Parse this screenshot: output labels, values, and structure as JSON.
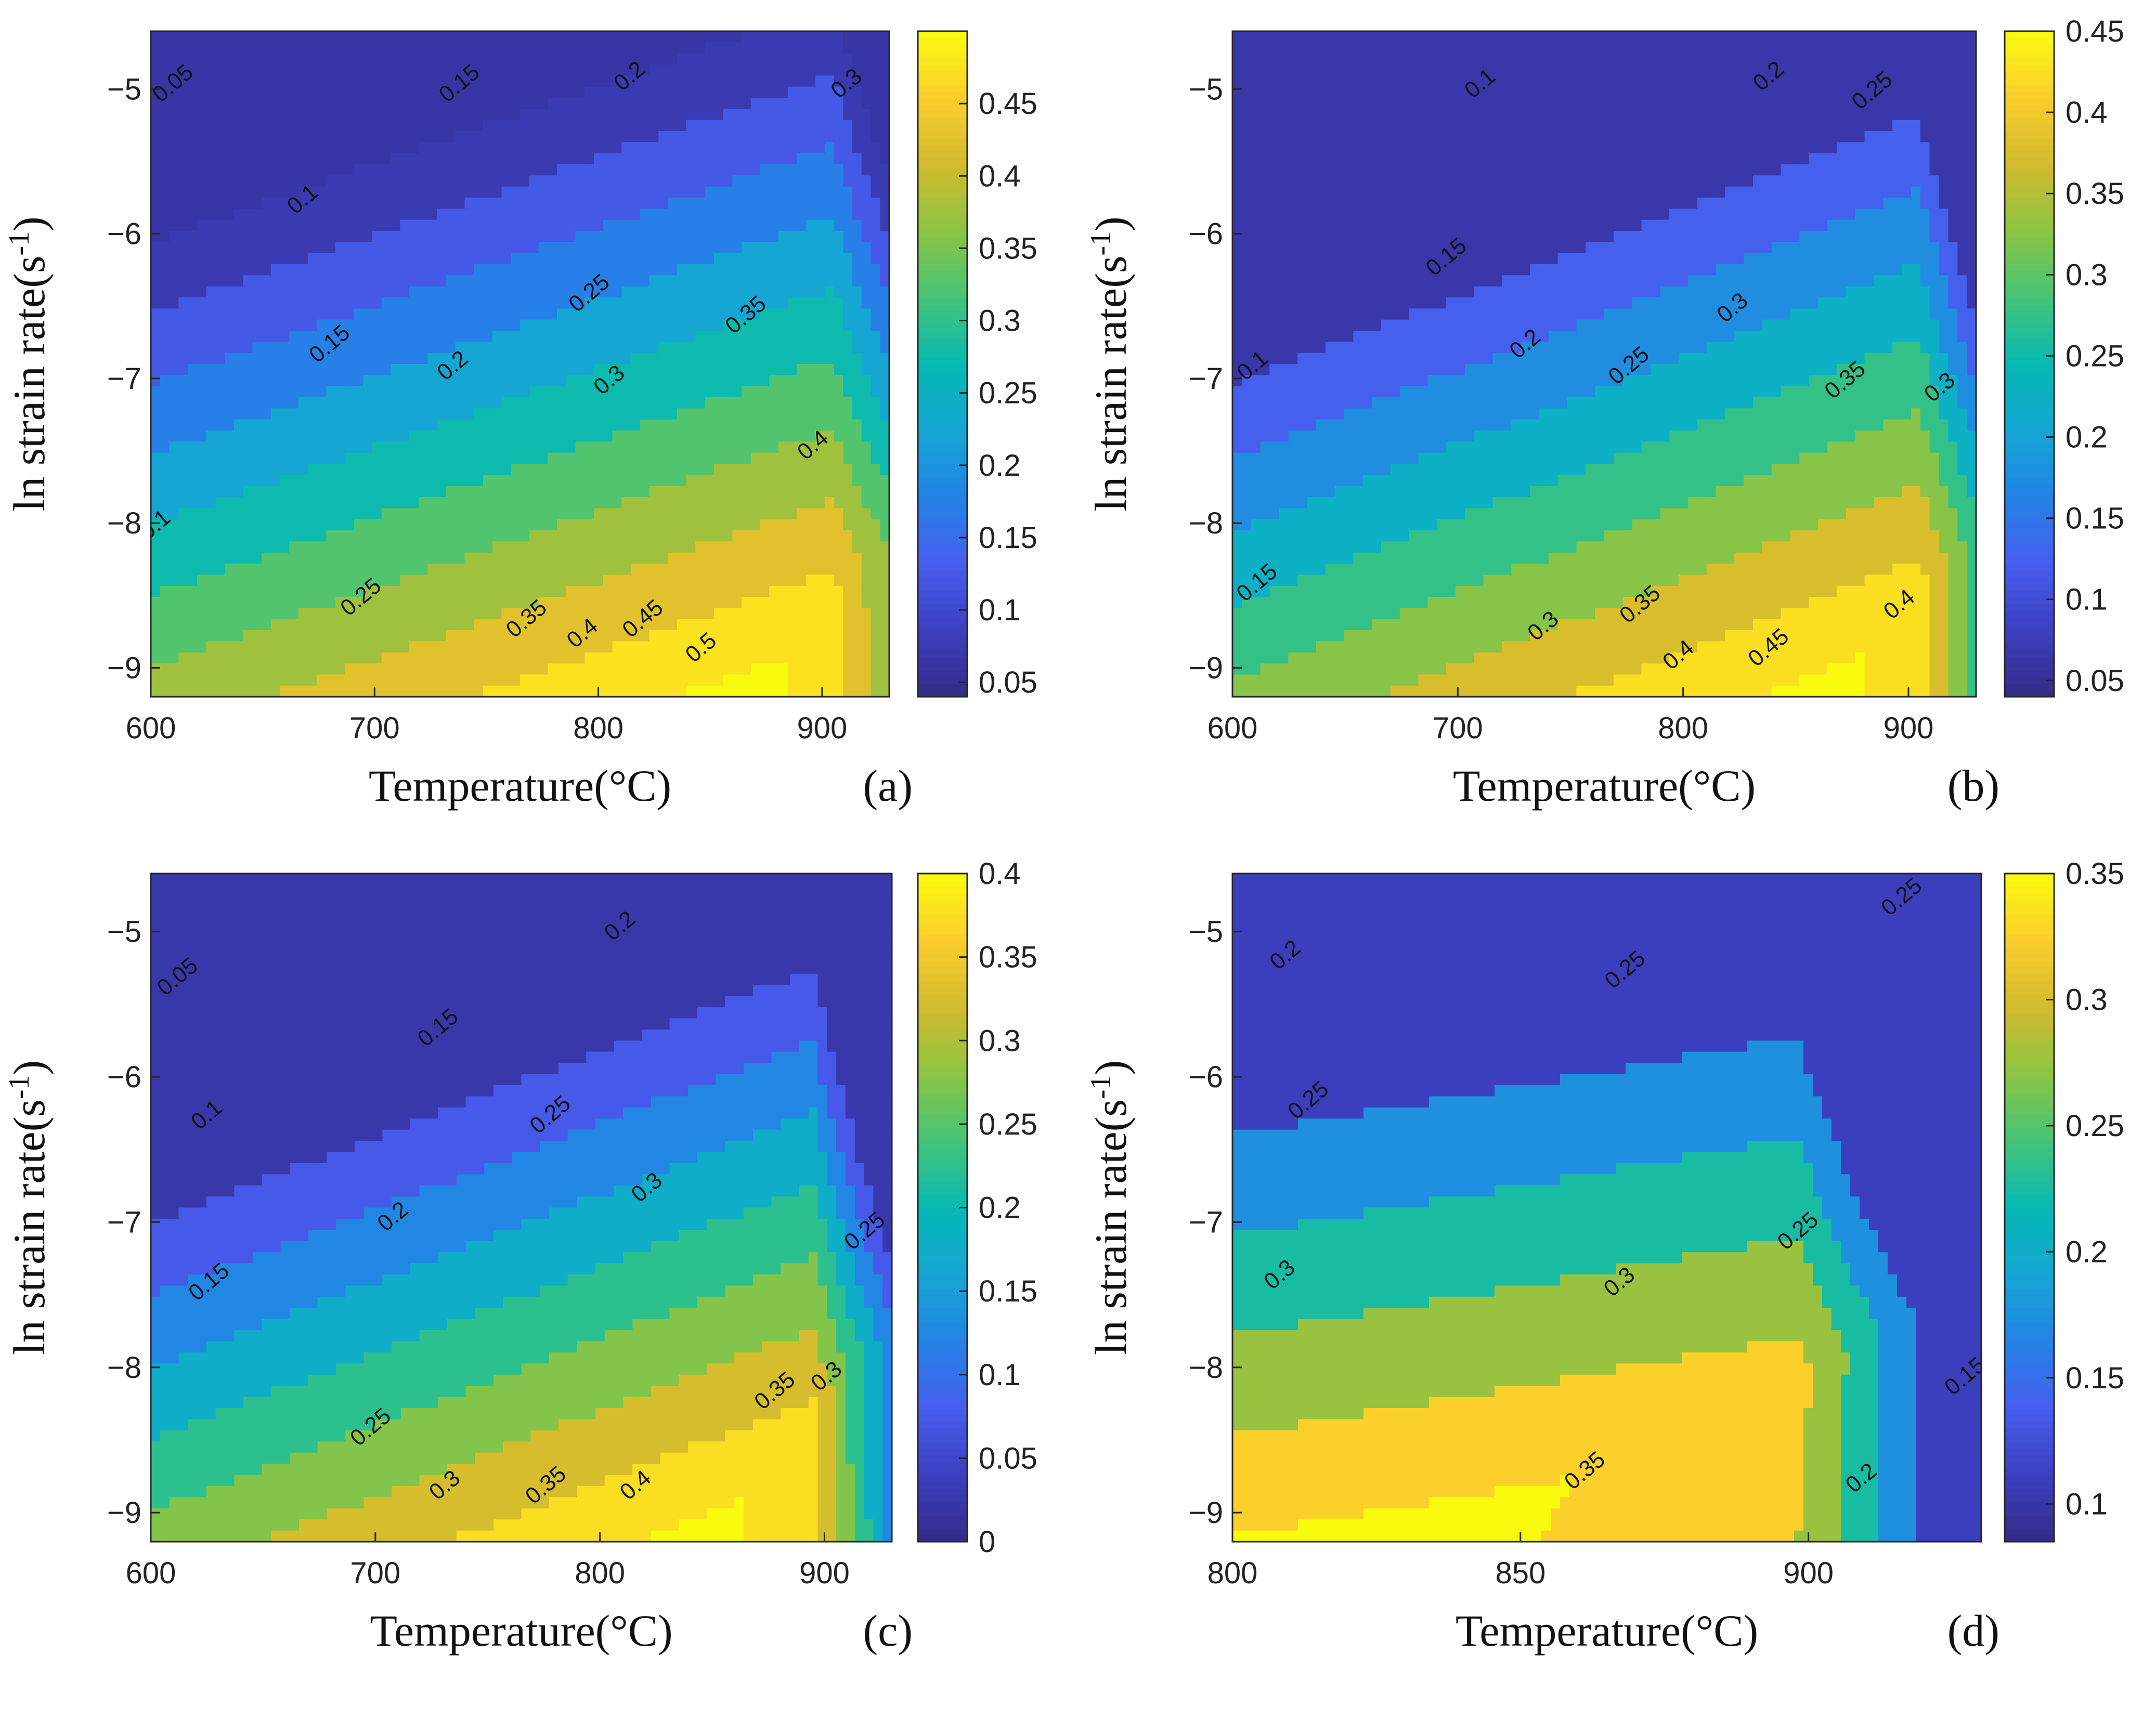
{
  "chart_data": [
    {
      "id": "a",
      "type": "contour",
      "panel_label": "(a)",
      "xlabel": "Temperature(°C)",
      "ylabel_main": "ln strain rate(s",
      "ylabel_sup": "-1",
      "ylabel_close": ")",
      "xlim": [
        600,
        930
      ],
      "ylim": [
        -9.2,
        -4.6
      ],
      "xticks": [
        600,
        700,
        800,
        900
      ],
      "xtick_labels": [
        "600",
        "700",
        "800",
        "900"
      ],
      "yticks": [
        -9,
        -8,
        -7,
        -6,
        -5
      ],
      "ytick_labels": [
        "−9",
        "−8",
        "−7",
        "−6",
        "−5"
      ],
      "clim": [
        0.04,
        0.5
      ],
      "colorbar_ticks": [
        0.05,
        0.1,
        0.15,
        0.2,
        0.25,
        0.3,
        0.35,
        0.4,
        0.45
      ],
      "colorbar_labels": [
        "0.05",
        "0.1",
        "0.15",
        "0.2",
        "0.25",
        "0.3",
        "0.35",
        "0.4",
        "0.45"
      ],
      "contour_levels": [
        0.05,
        0.1,
        0.15,
        0.2,
        0.25,
        0.3,
        0.35,
        0.4,
        0.45,
        0.5
      ],
      "field": {
        "peak_x": 870,
        "peak_y": -9.2,
        "peak_value": 0.52,
        "ref_value": 0.03,
        "drop_slope": 0.00055,
        "gain_per_unit_lnrate": 0.072,
        "hot_drop_start": 905,
        "hot_drop_rate": 0.0035
      },
      "contour_labels": [
        {
          "text": "0.05",
          "x": 612,
          "y": -5.0
        },
        {
          "text": "0.1",
          "x": 670,
          "y": -5.8
        },
        {
          "text": "0.15",
          "x": 740,
          "y": -5.0
        },
        {
          "text": "0.2",
          "x": 816,
          "y": -4.95
        },
        {
          "text": "0.3",
          "x": 913,
          "y": -5.0
        },
        {
          "text": "0.1",
          "x": 604,
          "y": -8.05
        },
        {
          "text": "0.15",
          "x": 682,
          "y": -6.8
        },
        {
          "text": "0.2",
          "x": 737,
          "y": -6.95
        },
        {
          "text": "0.25",
          "x": 798,
          "y": -6.45
        },
        {
          "text": "0.3",
          "x": 807,
          "y": -7.05
        },
        {
          "text": "0.35",
          "x": 868,
          "y": -6.6
        },
        {
          "text": "0.4",
          "x": 898,
          "y": -7.5
        },
        {
          "text": "0.25",
          "x": 696,
          "y": -8.55
        },
        {
          "text": "0.35",
          "x": 770,
          "y": -8.7
        },
        {
          "text": "0.4",
          "x": 795,
          "y": -8.8
        },
        {
          "text": "0.45",
          "x": 822,
          "y": -8.7
        },
        {
          "text": "0.5",
          "x": 848,
          "y": -8.9
        }
      ]
    },
    {
      "id": "b",
      "type": "contour",
      "panel_label": "(b)",
      "xlabel": "Temperature(°C)",
      "ylabel_main": "ln strain rate(s",
      "ylabel_sup": "-1",
      "ylabel_close": ")",
      "xlim": [
        600,
        930
      ],
      "ylim": [
        -9.2,
        -4.6
      ],
      "xticks": [
        600,
        700,
        800,
        900
      ],
      "xtick_labels": [
        "600",
        "700",
        "800",
        "900"
      ],
      "yticks": [
        -9,
        -8,
        -7,
        -6,
        -5
      ],
      "ytick_labels": [
        "−9",
        "−8",
        "−7",
        "−6",
        "−5"
      ],
      "clim": [
        0.04,
        0.45
      ],
      "colorbar_ticks": [
        0.05,
        0.1,
        0.15,
        0.2,
        0.25,
        0.3,
        0.35,
        0.4,
        0.45
      ],
      "colorbar_labels": [
        "0.05",
        "0.1",
        "0.15",
        "0.2",
        "0.25",
        "0.3",
        "0.35",
        "0.4",
        "0.45"
      ],
      "contour_levels": [
        0.1,
        0.15,
        0.2,
        0.25,
        0.3,
        0.35,
        0.4,
        0.45
      ],
      "field": {
        "peak_x": 865,
        "peak_y": -9.2,
        "peak_value": 0.47,
        "ref_value": 0.06,
        "drop_slope": 0.0006,
        "gain_per_unit_lnrate": 0.065,
        "hot_drop_start": 905,
        "hot_drop_rate": 0.0045
      },
      "contour_labels": [
        {
          "text": "0.1",
          "x": 712,
          "y": -5.0
        },
        {
          "text": "0.2",
          "x": 840,
          "y": -4.95
        },
        {
          "text": "0.25",
          "x": 886,
          "y": -5.05
        },
        {
          "text": "0.15",
          "x": 697,
          "y": -6.2
        },
        {
          "text": "0.2",
          "x": 732,
          "y": -6.8
        },
        {
          "text": "0.25",
          "x": 778,
          "y": -6.95
        },
        {
          "text": "0.3",
          "x": 824,
          "y": -6.55
        },
        {
          "text": "0.35",
          "x": 874,
          "y": -7.05
        },
        {
          "text": "0.3",
          "x": 916,
          "y": -7.1
        },
        {
          "text": "0.1",
          "x": 611,
          "y": -6.95
        },
        {
          "text": "0.15",
          "x": 613,
          "y": -8.45
        },
        {
          "text": "0.3",
          "x": 740,
          "y": -8.75
        },
        {
          "text": "0.35",
          "x": 783,
          "y": -8.6
        },
        {
          "text": "0.4",
          "x": 800,
          "y": -8.95
        },
        {
          "text": "0.4",
          "x": 898,
          "y": -8.6
        },
        {
          "text": "0.45",
          "x": 840,
          "y": -8.9
        }
      ]
    },
    {
      "id": "c",
      "type": "contour",
      "panel_label": "(c)",
      "xlabel": "Temperature(°C)",
      "ylabel_main": "ln strain rate(s",
      "ylabel_sup": "-1",
      "ylabel_close": ")",
      "xlim": [
        600,
        930
      ],
      "ylim": [
        -9.2,
        -4.6
      ],
      "xticks": [
        600,
        700,
        800,
        900
      ],
      "xtick_labels": [
        "600",
        "700",
        "800",
        "900"
      ],
      "yticks": [
        -9,
        -8,
        -7,
        -6,
        -5
      ],
      "ytick_labels": [
        "−9",
        "−8",
        "−7",
        "−6",
        "−5"
      ],
      "clim": [
        0.0,
        0.4
      ],
      "colorbar_ticks": [
        0,
        0.05,
        0.1,
        0.15,
        0.2,
        0.25,
        0.3,
        0.35,
        0.4
      ],
      "colorbar_labels": [
        "0",
        "0.05",
        "0.1",
        "0.15",
        "0.2",
        "0.25",
        "0.3",
        "0.35",
        "0.4"
      ],
      "contour_levels": [
        0.05,
        0.1,
        0.15,
        0.2,
        0.25,
        0.3,
        0.35,
        0.4
      ],
      "field": {
        "peak_x": 848,
        "peak_y": -9.2,
        "peak_value": 0.42,
        "ref_value": 0.0,
        "drop_slope": 0.0006,
        "gain_per_unit_lnrate": 0.068,
        "hot_drop_start": 895,
        "hot_drop_rate": 0.005
      },
      "contour_labels": [
        {
          "text": "0.05",
          "x": 614,
          "y": -5.35
        },
        {
          "text": "0.1",
          "x": 627,
          "y": -6.3
        },
        {
          "text": "0.15",
          "x": 730,
          "y": -5.7
        },
        {
          "text": "0.2",
          "x": 811,
          "y": -5.0
        },
        {
          "text": "0.25",
          "x": 780,
          "y": -6.3
        },
        {
          "text": "0.2",
          "x": 710,
          "y": -7.0
        },
        {
          "text": "0.15",
          "x": 628,
          "y": -7.45
        },
        {
          "text": "0.3",
          "x": 823,
          "y": -6.8
        },
        {
          "text": "0.25",
          "x": 920,
          "y": -7.1
        },
        {
          "text": "0.25",
          "x": 700,
          "y": -8.45
        },
        {
          "text": "0.3",
          "x": 733,
          "y": -8.85
        },
        {
          "text": "0.35",
          "x": 778,
          "y": -8.85
        },
        {
          "text": "0.4",
          "x": 818,
          "y": -8.85
        },
        {
          "text": "0.35",
          "x": 880,
          "y": -8.2
        },
        {
          "text": "0.3",
          "x": 903,
          "y": -8.1
        }
      ]
    },
    {
      "id": "d",
      "type": "contour",
      "panel_label": "(d)",
      "xlabel": "Temperature(°C)",
      "ylabel_main": "ln strain rate(s",
      "ylabel_sup": "-1",
      "ylabel_close": ")",
      "xlim": [
        800,
        930
      ],
      "ylim": [
        -9.2,
        -4.6
      ],
      "xticks": [
        800,
        850,
        900
      ],
      "xtick_labels": [
        "800",
        "850",
        "900"
      ],
      "yticks": [
        -9,
        -8,
        -7,
        -6,
        -5
      ],
      "ytick_labels": [
        "−9",
        "−8",
        "−7",
        "−6",
        "−5"
      ],
      "clim": [
        0.085,
        0.35
      ],
      "colorbar_ticks": [
        0.1,
        0.15,
        0.2,
        0.25,
        0.3,
        0.35
      ],
      "colorbar_labels": [
        "0.1",
        "0.15",
        "0.2",
        "0.25",
        "0.3",
        "0.35"
      ],
      "contour_levels": [
        0.15,
        0.2,
        0.25,
        0.3,
        0.35
      ],
      "field": {
        "peak_x": 835,
        "peak_y": -9.2,
        "peak_value": 0.37,
        "ref_value": 0.17,
        "drop_slope": 0.0005,
        "gain_per_unit_lnrate": 0.045,
        "hot_drop_start": 898,
        "hot_drop_rate": 0.006
      },
      "contour_labels": [
        {
          "text": "0.2",
          "x": 810,
          "y": -5.2
        },
        {
          "text": "0.25",
          "x": 917,
          "y": -4.8
        },
        {
          "text": "0.25",
          "x": 869,
          "y": -5.3
        },
        {
          "text": "0.25",
          "x": 814,
          "y": -6.2
        },
        {
          "text": "0.25",
          "x": 899,
          "y": -7.1
        },
        {
          "text": "0.3",
          "x": 809,
          "y": -7.4
        },
        {
          "text": "0.3",
          "x": 868,
          "y": -7.45
        },
        {
          "text": "0.35",
          "x": 862,
          "y": -8.75
        },
        {
          "text": "0.2",
          "x": 910,
          "y": -8.8
        },
        {
          "text": "0.15",
          "x": 928,
          "y": -8.1
        }
      ]
    }
  ]
}
